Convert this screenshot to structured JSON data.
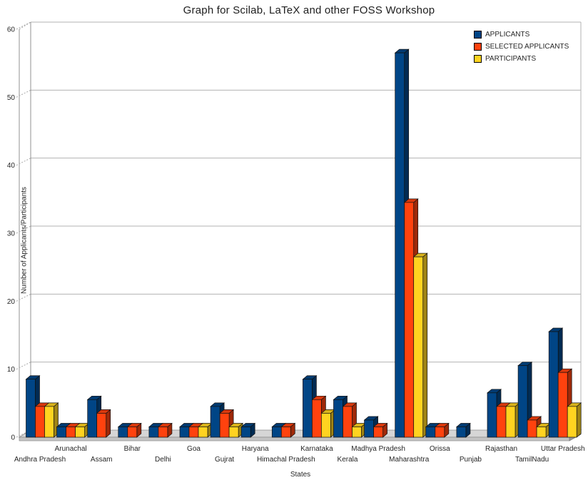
{
  "chart_data": {
    "type": "bar",
    "style": "3d-bar",
    "title": "Graph for Scilab, LaTeX and other FOSS Workshop",
    "xlabel": "States",
    "ylabel": "Number of Applicants/Participants",
    "ylim": [
      0,
      60
    ],
    "ytick_step": 10,
    "grid": true,
    "legend_position": "top-right",
    "background_color": "#ffffff",
    "gridline_color": "#b3b3b3",
    "floor_color": "#d6d6d6",
    "categories": [
      "Andhra Pradesh",
      "Arunachal",
      "Assam",
      "Bihar",
      "Delhi",
      "Goa",
      "Gujrat",
      "Haryana",
      "Himachal Pradesh",
      "Karnataka",
      "Kerala",
      "Madhya Pradesh",
      "Maharashtra",
      "Orissa",
      "Punjab",
      "Rajasthan",
      "TamilNadu",
      "Uttar Pradesh"
    ],
    "yticks": [
      0,
      10,
      20,
      30,
      40,
      50,
      60
    ],
    "series": [
      {
        "name": "APPLICANTS",
        "color": "#004586",
        "values": [
          8,
          1,
          5,
          1,
          1,
          1,
          4,
          1,
          1,
          8,
          5,
          2,
          56,
          1,
          1,
          6,
          10,
          15
        ]
      },
      {
        "name": "SELECTED APPLICANTS",
        "color": "#ff420e",
        "values": [
          4,
          1,
          3,
          1,
          1,
          1,
          3,
          0,
          1,
          5,
          4,
          1,
          34,
          1,
          0,
          4,
          2,
          9
        ]
      },
      {
        "name": "PARTICIPANTS",
        "color": "#ffd320",
        "values": [
          4,
          1,
          0,
          0,
          0,
          1,
          1,
          0,
          0,
          3,
          1,
          0,
          26,
          0,
          0,
          4,
          1,
          4
        ]
      }
    ]
  }
}
